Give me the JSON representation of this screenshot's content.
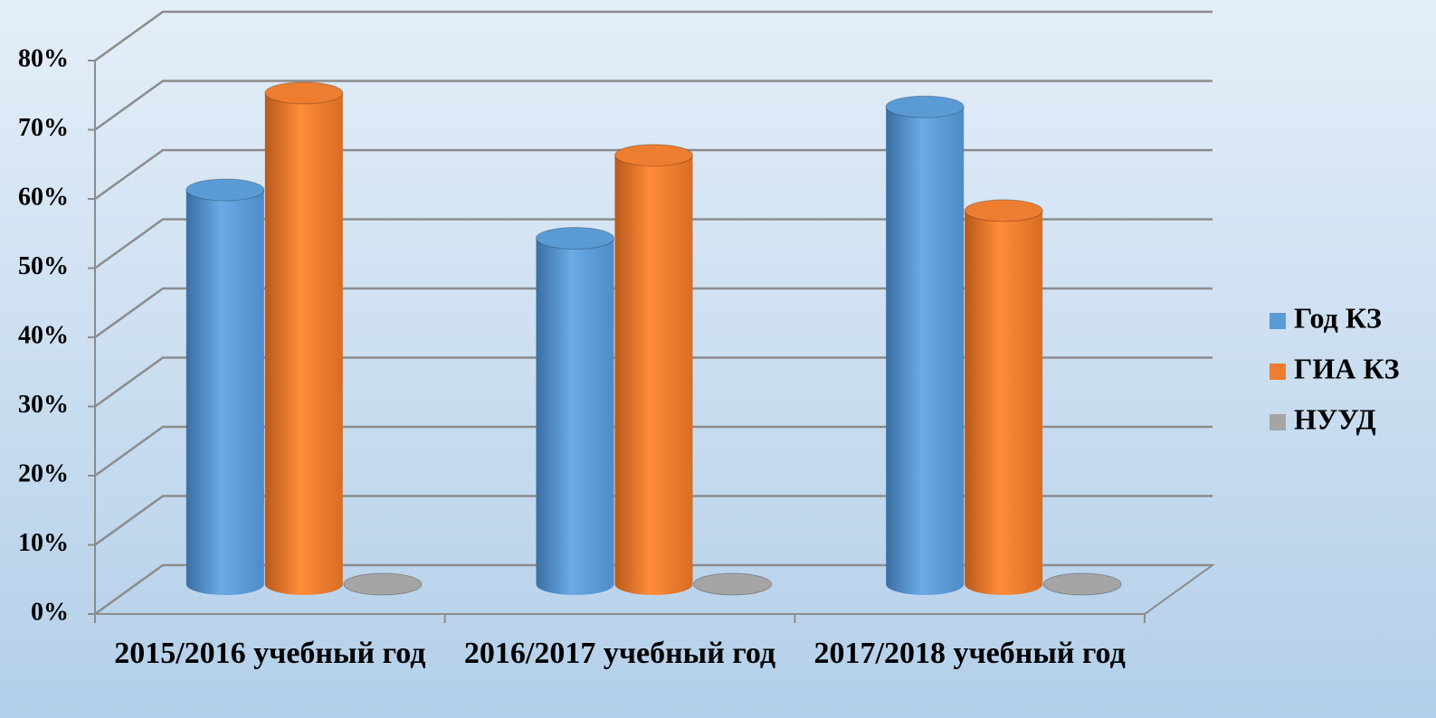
{
  "chart_data": {
    "type": "bar3d",
    "categories": [
      "2015/2016 учебный год",
      "2016/2017 учебный год",
      "2017/2018 учебный год"
    ],
    "series": [
      {
        "name": "Год КЗ",
        "color": "#5b9bd5",
        "values": [
          57,
          50,
          69
        ]
      },
      {
        "name": "ГИА КЗ",
        "color": "#ed7d31",
        "values": [
          71,
          62,
          54
        ]
      },
      {
        "name": "НУУД",
        "color": "#a5a5a5",
        "values": [
          0,
          0,
          0
        ]
      }
    ],
    "ylim": [
      0,
      80
    ],
    "yticks": [
      {
        "value": 0,
        "label": "0%"
      },
      {
        "value": 10,
        "label": "10%"
      },
      {
        "value": 20,
        "label": "20%"
      },
      {
        "value": 30,
        "label": "30%"
      },
      {
        "value": 40,
        "label": "40%"
      },
      {
        "value": 50,
        "label": "50%"
      },
      {
        "value": 60,
        "label": "60%"
      },
      {
        "value": 70,
        "label": "70%"
      },
      {
        "value": 80,
        "label": "80%"
      }
    ],
    "grid": true,
    "legend": "right"
  }
}
